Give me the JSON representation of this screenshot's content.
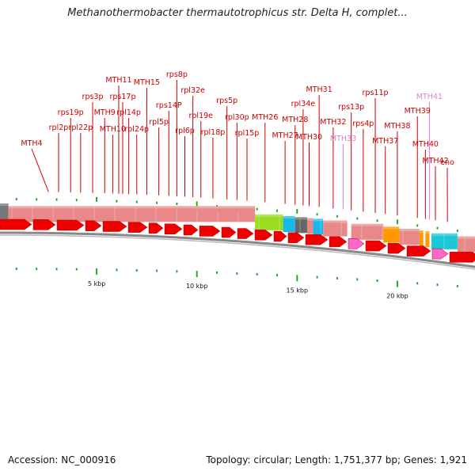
{
  "title": "Methanothermobacter thermautotrophicus str. Delta H, complet...",
  "footer": {
    "accession": "Accession: NC_000916",
    "topology": "Topology: circular; Length: 1,751,377 bp; Genes: 1,921"
  },
  "colors": {
    "gene_label": "#cc0000",
    "gene_label_pseudo": "#e080d0",
    "gene_arrow": "#ee0000",
    "ruler_tick": "#22aa22",
    "cog_default": "#e88888"
  },
  "scale": {
    "unit": "kbp",
    "tick_labels": [
      {
        "kbp": 5,
        "text": "5 kbp"
      },
      {
        "kbp": 10,
        "text": "10 kbp"
      },
      {
        "kbp": 15,
        "text": "15 kbp"
      },
      {
        "kbp": 20,
        "text": "20 kbp"
      }
    ]
  },
  "genes": [
    {
      "name": "MTH4",
      "pos_kbp": 2.6,
      "pseudo": false
    },
    {
      "name": "rpl2p",
      "pos_kbp": 3.1,
      "pseudo": false
    },
    {
      "name": "rps19p",
      "pos_kbp": 3.7,
      "pseudo": false
    },
    {
      "name": "rpl22p",
      "pos_kbp": 4.2,
      "pseudo": false
    },
    {
      "name": "rps3p",
      "pos_kbp": 4.8,
      "pseudo": false
    },
    {
      "name": "MTH9",
      "pos_kbp": 5.4,
      "pseudo": false
    },
    {
      "name": "MTH10",
      "pos_kbp": 5.8,
      "pseudo": false
    },
    {
      "name": "MTH11",
      "pos_kbp": 6.1,
      "pseudo": false
    },
    {
      "name": "rps17p",
      "pos_kbp": 6.3,
      "pseudo": false
    },
    {
      "name": "rpl14p",
      "pos_kbp": 6.6,
      "pseudo": false
    },
    {
      "name": "rpl24p",
      "pos_kbp": 7.0,
      "pseudo": false
    },
    {
      "name": "MTH15",
      "pos_kbp": 7.5,
      "pseudo": false
    },
    {
      "name": "rpl5p",
      "pos_kbp": 8.1,
      "pseudo": false
    },
    {
      "name": "rps14P",
      "pos_kbp": 8.6,
      "pseudo": false
    },
    {
      "name": "rps8p",
      "pos_kbp": 9.0,
      "pseudo": false
    },
    {
      "name": "rpl6p",
      "pos_kbp": 9.4,
      "pseudo": false
    },
    {
      "name": "rpl32e",
      "pos_kbp": 9.8,
      "pseudo": false
    },
    {
      "name": "rpl19e",
      "pos_kbp": 10.2,
      "pseudo": false
    },
    {
      "name": "rpl18p",
      "pos_kbp": 10.8,
      "pseudo": false
    },
    {
      "name": "rps5p",
      "pos_kbp": 11.5,
      "pseudo": false
    },
    {
      "name": "rpl30p",
      "pos_kbp": 12.0,
      "pseudo": false
    },
    {
      "name": "rpl15p",
      "pos_kbp": 12.5,
      "pseudo": false
    },
    {
      "name": "MTH26",
      "pos_kbp": 13.4,
      "pseudo": false
    },
    {
      "name": "MTH27",
      "pos_kbp": 14.4,
      "pseudo": false
    },
    {
      "name": "MTH28",
      "pos_kbp": 14.9,
      "pseudo": false
    },
    {
      "name": "rpl34e",
      "pos_kbp": 15.3,
      "pseudo": false
    },
    {
      "name": "MTH30",
      "pos_kbp": 15.6,
      "pseudo": false
    },
    {
      "name": "MTH31",
      "pos_kbp": 16.1,
      "pseudo": false
    },
    {
      "name": "MTH32",
      "pos_kbp": 16.8,
      "pseudo": false
    },
    {
      "name": "MTH33",
      "pos_kbp": 17.3,
      "pseudo": true
    },
    {
      "name": "rps13p",
      "pos_kbp": 17.7,
      "pseudo": false
    },
    {
      "name": "rps4p",
      "pos_kbp": 18.3,
      "pseudo": false
    },
    {
      "name": "rps11p",
      "pos_kbp": 18.9,
      "pseudo": false
    },
    {
      "name": "MTH37",
      "pos_kbp": 19.4,
      "pseudo": false
    },
    {
      "name": "MTH38",
      "pos_kbp": 20.0,
      "pseudo": false
    },
    {
      "name": "MTH39",
      "pos_kbp": 21.0,
      "pseudo": false
    },
    {
      "name": "MTH40",
      "pos_kbp": 21.4,
      "pseudo": false
    },
    {
      "name": "MTH41",
      "pos_kbp": 21.6,
      "pseudo": true
    },
    {
      "name": "MTH42",
      "pos_kbp": 21.9,
      "pseudo": false
    },
    {
      "name": "eno",
      "pos_kbp": 22.5,
      "pseudo": false
    }
  ],
  "cog_segments": [
    {
      "from_kbp": 0.0,
      "to_kbp": 0.6,
      "color": "#777777"
    },
    {
      "from_kbp": 0.6,
      "to_kbp": 12.9,
      "color": "#e88888"
    },
    {
      "from_kbp": 12.9,
      "to_kbp": 14.3,
      "color": "#99dd22"
    },
    {
      "from_kbp": 14.3,
      "to_kbp": 14.9,
      "color": "#1ab8e8"
    },
    {
      "from_kbp": 14.9,
      "to_kbp": 15.5,
      "color": "#666666"
    },
    {
      "from_kbp": 15.5,
      "to_kbp": 15.8,
      "color": "#e88888"
    },
    {
      "from_kbp": 15.8,
      "to_kbp": 16.3,
      "color": "#1ab8e8"
    },
    {
      "from_kbp": 16.3,
      "to_kbp": 17.5,
      "color": "#e88888"
    },
    {
      "from_kbp": 17.7,
      "to_kbp": 19.3,
      "color": "#e88888"
    },
    {
      "from_kbp": 19.3,
      "to_kbp": 20.1,
      "color": "#ff9900"
    },
    {
      "from_kbp": 20.1,
      "to_kbp": 21.1,
      "color": "#e88888"
    },
    {
      "from_kbp": 21.1,
      "to_kbp": 21.3,
      "color": "#ff9900"
    },
    {
      "from_kbp": 21.4,
      "to_kbp": 21.6,
      "color": "#ff9900"
    },
    {
      "from_kbp": 21.7,
      "to_kbp": 23.0,
      "color": "#1ac8d8"
    },
    {
      "from_kbp": 23.0,
      "to_kbp": 24.0,
      "color": "#e88888"
    }
  ]
}
